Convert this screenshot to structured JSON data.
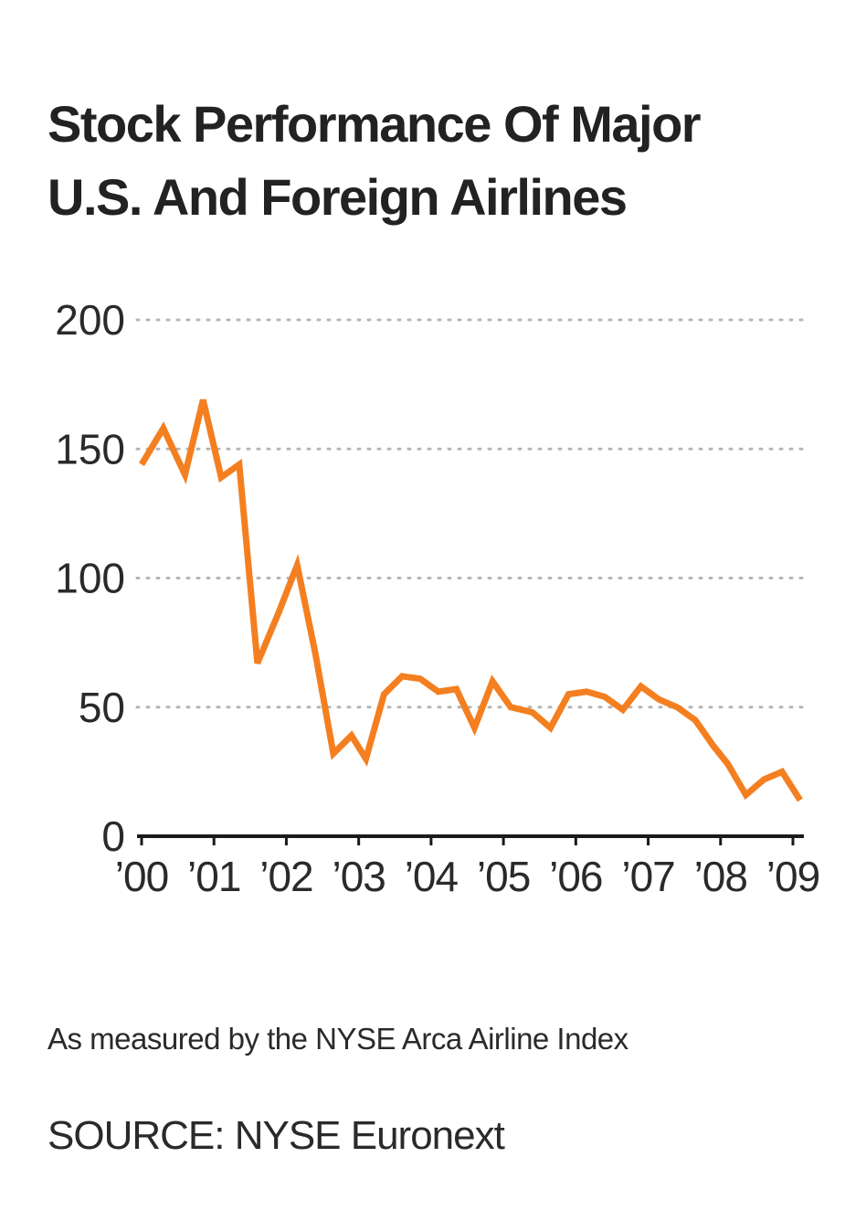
{
  "chart_data": {
    "type": "line",
    "title": "Stock Performance Of Major U.S. And Foreign Airlines",
    "title_lines": [
      "Stock Performance Of Major",
      "U.S. And Foreign Airlines"
    ],
    "xlabel": "",
    "ylabel": "",
    "ylim": [
      0,
      200
    ],
    "xlim": [
      2000,
      2009.3
    ],
    "y_ticks": [
      0,
      50,
      100,
      150,
      200
    ],
    "x_tick_values": [
      2000,
      2001,
      2002,
      2003,
      2004,
      2005,
      2006,
      2007,
      2008,
      2009
    ],
    "x_tick_labels": [
      "’00",
      "’01",
      "’02",
      "’03",
      "’04",
      "’05",
      "’06",
      "’07",
      "’08",
      "’09"
    ],
    "grid": "horizontal dotted",
    "color": "#f47f20",
    "series": [
      {
        "x": [
          2000.0,
          2000.3,
          2000.6,
          2000.85,
          2001.1,
          2001.35,
          2001.6,
          2001.9,
          2002.15,
          2002.4,
          2002.65,
          2002.9,
          2003.1,
          2003.35,
          2003.6,
          2003.85,
          2004.1,
          2004.35,
          2004.6,
          2004.85,
          2005.1,
          2005.4,
          2005.65,
          2005.9,
          2006.15,
          2006.4,
          2006.65,
          2006.9,
          2007.15,
          2007.4,
          2007.65,
          2007.9,
          2008.1,
          2008.35,
          2008.6,
          2008.85,
          2009.1
        ],
        "y": [
          144,
          158,
          140,
          169,
          139,
          144,
          67,
          87,
          105,
          71,
          32,
          39,
          30,
          55,
          62,
          61,
          56,
          57,
          42,
          60,
          50,
          48,
          42,
          55,
          56,
          54,
          49,
          58,
          53,
          50,
          45,
          35,
          28,
          16,
          22,
          25,
          14
        ]
      }
    ]
  },
  "footer": {
    "note": "As measured by the NYSE Arca Airline Index",
    "source": "SOURCE: NYSE Euronext"
  }
}
